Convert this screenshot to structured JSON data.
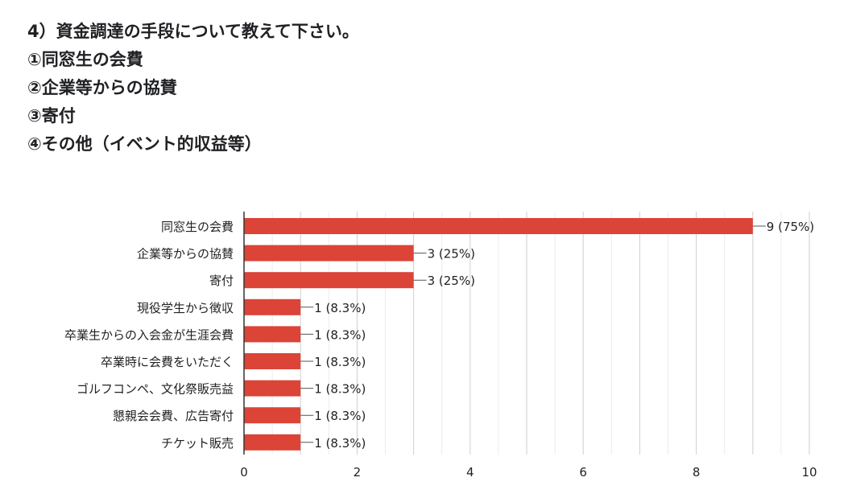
{
  "question": {
    "lines": [
      "4）資金調達の手段について教えて下さい。",
      "①同窓生の会費",
      "②企業等からの協賛",
      "③寄付",
      "④その他（イベント的収益等）"
    ]
  },
  "chart_data": {
    "type": "bar",
    "orientation": "horizontal",
    "categories": [
      "同窓生の会費",
      "企業等からの協賛",
      "寄付",
      "現役学生から徴収",
      "卒業生からの入会金が生涯会費",
      "卒業時に会費をいただく",
      "ゴルフコンペ、文化祭販売益",
      "懇親会会費、広告寄付",
      "チケット販売"
    ],
    "values": [
      9,
      3,
      3,
      1,
      1,
      1,
      1,
      1,
      1
    ],
    "data_labels": [
      "9 (75%)",
      "3 (25%)",
      "3 (25%)",
      "1 (8.3%)",
      "1 (8.3%)",
      "1 (8.3%)",
      "1 (8.3%)",
      "1 (8.3%)",
      "1 (8.3%)"
    ],
    "xlim": [
      0,
      10
    ],
    "xticks": [
      "0",
      "2",
      "4",
      "6",
      "8",
      "10"
    ],
    "grid": true,
    "bar_color": "#db4437",
    "xlabel": "",
    "ylabel": "",
    "title": ""
  }
}
